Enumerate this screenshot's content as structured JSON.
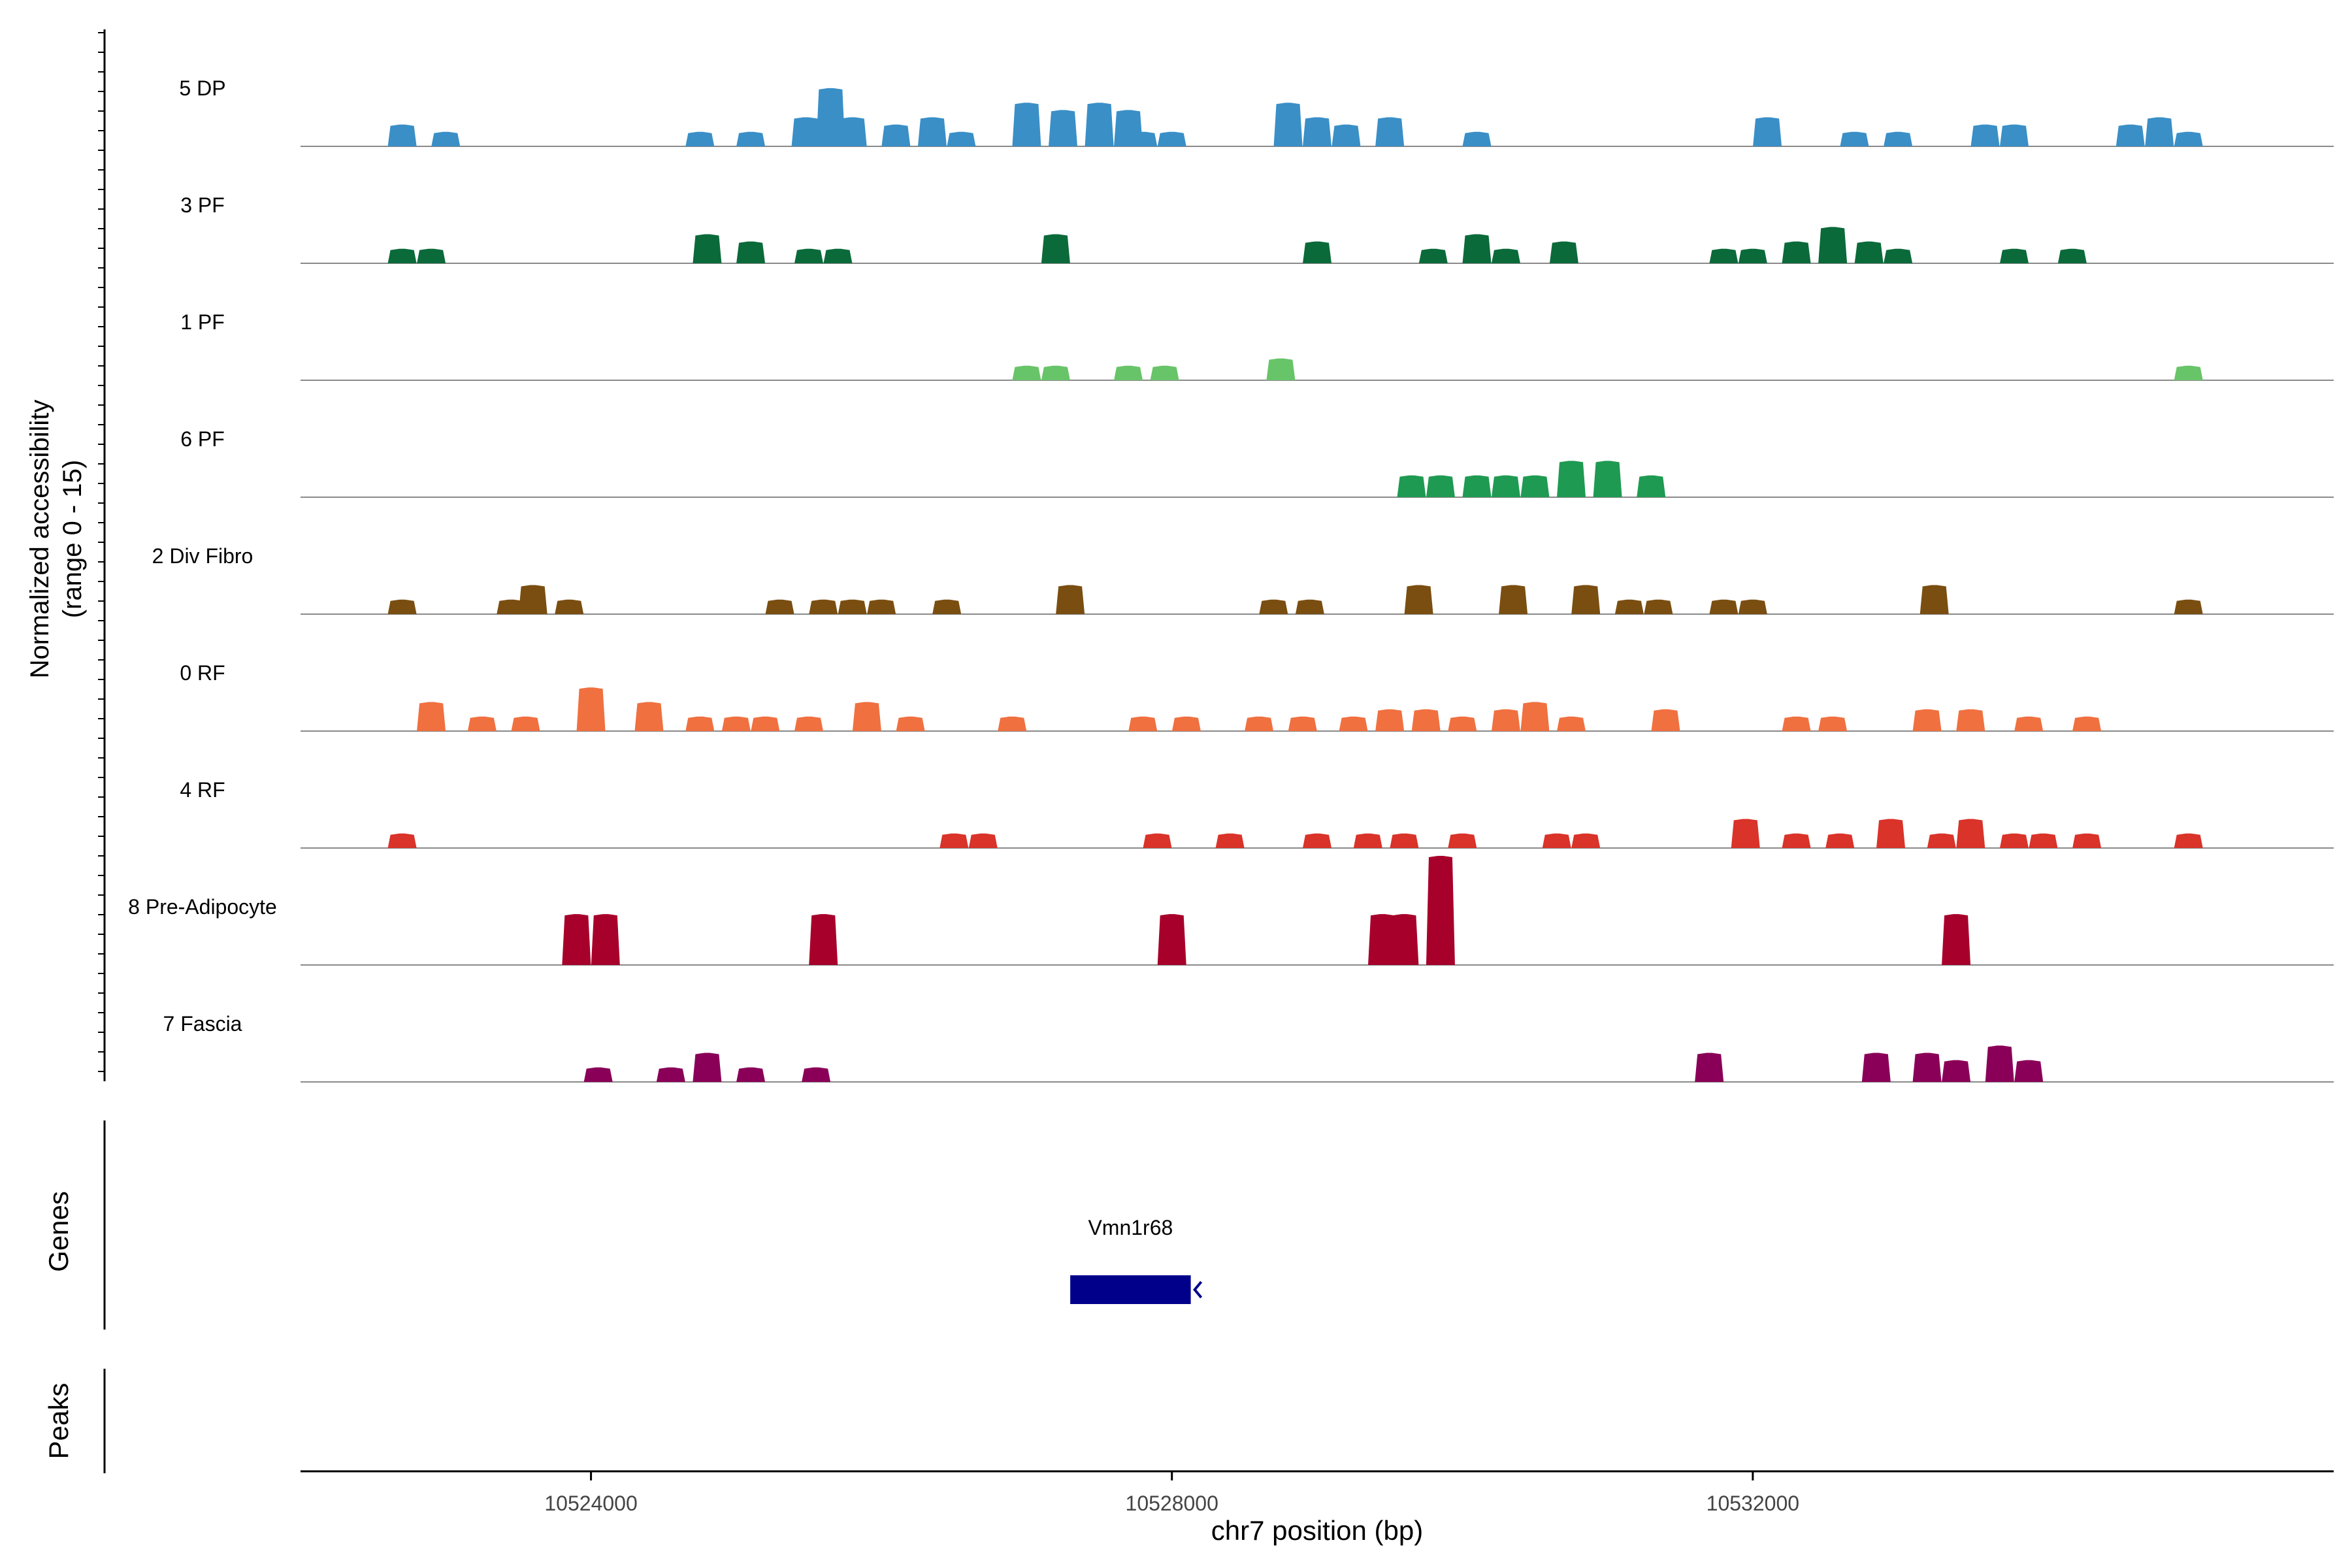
{
  "chart_data": {
    "type": "area",
    "ylabel_lines": [
      "Normalized accessibility",
      "(range 0 - 15)"
    ],
    "genes_label": "Genes",
    "peaks_label": "Peaks",
    "xlabel": "chr7 position (bp)",
    "xlim": [
      10522000,
      10536000
    ],
    "x_ticks": [
      {
        "value": 10524000,
        "label": "10524000"
      },
      {
        "value": 10528000,
        "label": "10528000"
      },
      {
        "value": 10532000,
        "label": "10532000"
      }
    ],
    "ylim": [
      0,
      15
    ],
    "tracks": [
      {
        "name": "5 DP",
        "color": "#3a8fc7",
        "peaks": [
          [
            10522700,
            3
          ],
          [
            10523000,
            2
          ],
          [
            10524750,
            2
          ],
          [
            10525100,
            2
          ],
          [
            10525480,
            4
          ],
          [
            10525650,
            8
          ],
          [
            10525800,
            4
          ],
          [
            10526100,
            3
          ],
          [
            10526350,
            4
          ],
          [
            10526550,
            2
          ],
          [
            10527000,
            6
          ],
          [
            10527250,
            5
          ],
          [
            10527500,
            6
          ],
          [
            10527700,
            5
          ],
          [
            10527800,
            2
          ],
          [
            10528000,
            2
          ],
          [
            10528800,
            6
          ],
          [
            10529000,
            4
          ],
          [
            10529200,
            3
          ],
          [
            10529500,
            4
          ],
          [
            10530100,
            2
          ],
          [
            10532100,
            4
          ],
          [
            10532700,
            2
          ],
          [
            10533000,
            2
          ],
          [
            10533600,
            3
          ],
          [
            10533800,
            3
          ],
          [
            10534600,
            3
          ],
          [
            10534800,
            4
          ],
          [
            10535000,
            2
          ]
        ]
      },
      {
        "name": "3 PF",
        "color": "#0b6a3a",
        "peaks": [
          [
            10522700,
            2
          ],
          [
            10522900,
            2
          ],
          [
            10524800,
            4
          ],
          [
            10525100,
            3
          ],
          [
            10525500,
            2
          ],
          [
            10525700,
            2
          ],
          [
            10527200,
            4
          ],
          [
            10529000,
            3
          ],
          [
            10529800,
            2
          ],
          [
            10530100,
            4
          ],
          [
            10530300,
            2
          ],
          [
            10530700,
            3
          ],
          [
            10531800,
            2
          ],
          [
            10532000,
            2
          ],
          [
            10532300,
            3
          ],
          [
            10532550,
            5
          ],
          [
            10532800,
            3
          ],
          [
            10533000,
            2
          ],
          [
            10533800,
            2
          ],
          [
            10534200,
            2
          ]
        ]
      },
      {
        "name": "1 PF",
        "color": "#68c468",
        "peaks": [
          [
            10527000,
            2
          ],
          [
            10527200,
            2
          ],
          [
            10527700,
            2
          ],
          [
            10527950,
            2
          ],
          [
            10528750,
            3
          ],
          [
            10535000,
            2
          ]
        ]
      },
      {
        "name": "6 PF",
        "color": "#1f9a52",
        "peaks": [
          [
            10529650,
            3
          ],
          [
            10529850,
            3
          ],
          [
            10530100,
            3
          ],
          [
            10530300,
            3
          ],
          [
            10530500,
            3
          ],
          [
            10530750,
            5
          ],
          [
            10531000,
            5
          ],
          [
            10531300,
            3
          ]
        ]
      },
      {
        "name": "2 Div Fibro",
        "color": "#7a4e11",
        "peaks": [
          [
            10522700,
            2
          ],
          [
            10523450,
            2
          ],
          [
            10523600,
            4
          ],
          [
            10523850,
            2
          ],
          [
            10525300,
            2
          ],
          [
            10525600,
            2
          ],
          [
            10525800,
            2
          ],
          [
            10526000,
            2
          ],
          [
            10526450,
            2
          ],
          [
            10527300,
            4
          ],
          [
            10528700,
            2
          ],
          [
            10528950,
            2
          ],
          [
            10529700,
            4
          ],
          [
            10530350,
            4
          ],
          [
            10530850,
            4
          ],
          [
            10531150,
            2
          ],
          [
            10531350,
            2
          ],
          [
            10531800,
            2
          ],
          [
            10532000,
            2
          ],
          [
            10533250,
            4
          ],
          [
            10535000,
            2
          ]
        ]
      },
      {
        "name": "0 RF",
        "color": "#f07040",
        "peaks": [
          [
            10522900,
            4
          ],
          [
            10523250,
            2
          ],
          [
            10523550,
            2
          ],
          [
            10524000,
            6
          ],
          [
            10524400,
            4
          ],
          [
            10524750,
            2
          ],
          [
            10525000,
            2
          ],
          [
            10525200,
            2
          ],
          [
            10525500,
            2
          ],
          [
            10525900,
            4
          ],
          [
            10526200,
            2
          ],
          [
            10526900,
            2
          ],
          [
            10527800,
            2
          ],
          [
            10528100,
            2
          ],
          [
            10528600,
            2
          ],
          [
            10528900,
            2
          ],
          [
            10529250,
            2
          ],
          [
            10529500,
            3
          ],
          [
            10529750,
            3
          ],
          [
            10530000,
            2
          ],
          [
            10530300,
            3
          ],
          [
            10530500,
            4
          ],
          [
            10530750,
            2
          ],
          [
            10531400,
            3
          ],
          [
            10532300,
            2
          ],
          [
            10532550,
            2
          ],
          [
            10533200,
            3
          ],
          [
            10533500,
            3
          ],
          [
            10533900,
            2
          ],
          [
            10534300,
            2
          ]
        ]
      },
      {
        "name": "4 RF",
        "color": "#d9332a",
        "peaks": [
          [
            10522700,
            2
          ],
          [
            10526500,
            2
          ],
          [
            10526700,
            2
          ],
          [
            10527900,
            2
          ],
          [
            10528400,
            2
          ],
          [
            10529000,
            2
          ],
          [
            10529350,
            2
          ],
          [
            10529600,
            2
          ],
          [
            10530000,
            2
          ],
          [
            10530650,
            2
          ],
          [
            10530850,
            2
          ],
          [
            10531950,
            4
          ],
          [
            10532300,
            2
          ],
          [
            10532600,
            2
          ],
          [
            10532950,
            4
          ],
          [
            10533300,
            2
          ],
          [
            10533500,
            4
          ],
          [
            10533800,
            2
          ],
          [
            10534000,
            2
          ],
          [
            10534300,
            2
          ],
          [
            10535000,
            2
          ]
        ]
      },
      {
        "name": "8 Pre-Adipocyte",
        "color": "#a7002b",
        "peaks": [
          [
            10523900,
            7
          ],
          [
            10524100,
            7
          ],
          [
            10525600,
            7
          ],
          [
            10528000,
            7
          ],
          [
            10529450,
            7
          ],
          [
            10529600,
            7
          ],
          [
            10529850,
            15
          ],
          [
            10533400,
            7
          ]
        ]
      },
      {
        "name": "7 Fascia",
        "color": "#8a0058",
        "peaks": [
          [
            10524050,
            2
          ],
          [
            10524550,
            2
          ],
          [
            10524800,
            4
          ],
          [
            10525100,
            2
          ],
          [
            10525550,
            2
          ],
          [
            10531700,
            4
          ],
          [
            10532850,
            4
          ],
          [
            10533200,
            4
          ],
          [
            10533400,
            3
          ],
          [
            10533700,
            5
          ],
          [
            10533900,
            3
          ]
        ]
      }
    ],
    "gene": {
      "name": "Vmn1r68",
      "start": 10527300,
      "end": 10528130,
      "strand": "-",
      "color": "#00008b"
    }
  }
}
